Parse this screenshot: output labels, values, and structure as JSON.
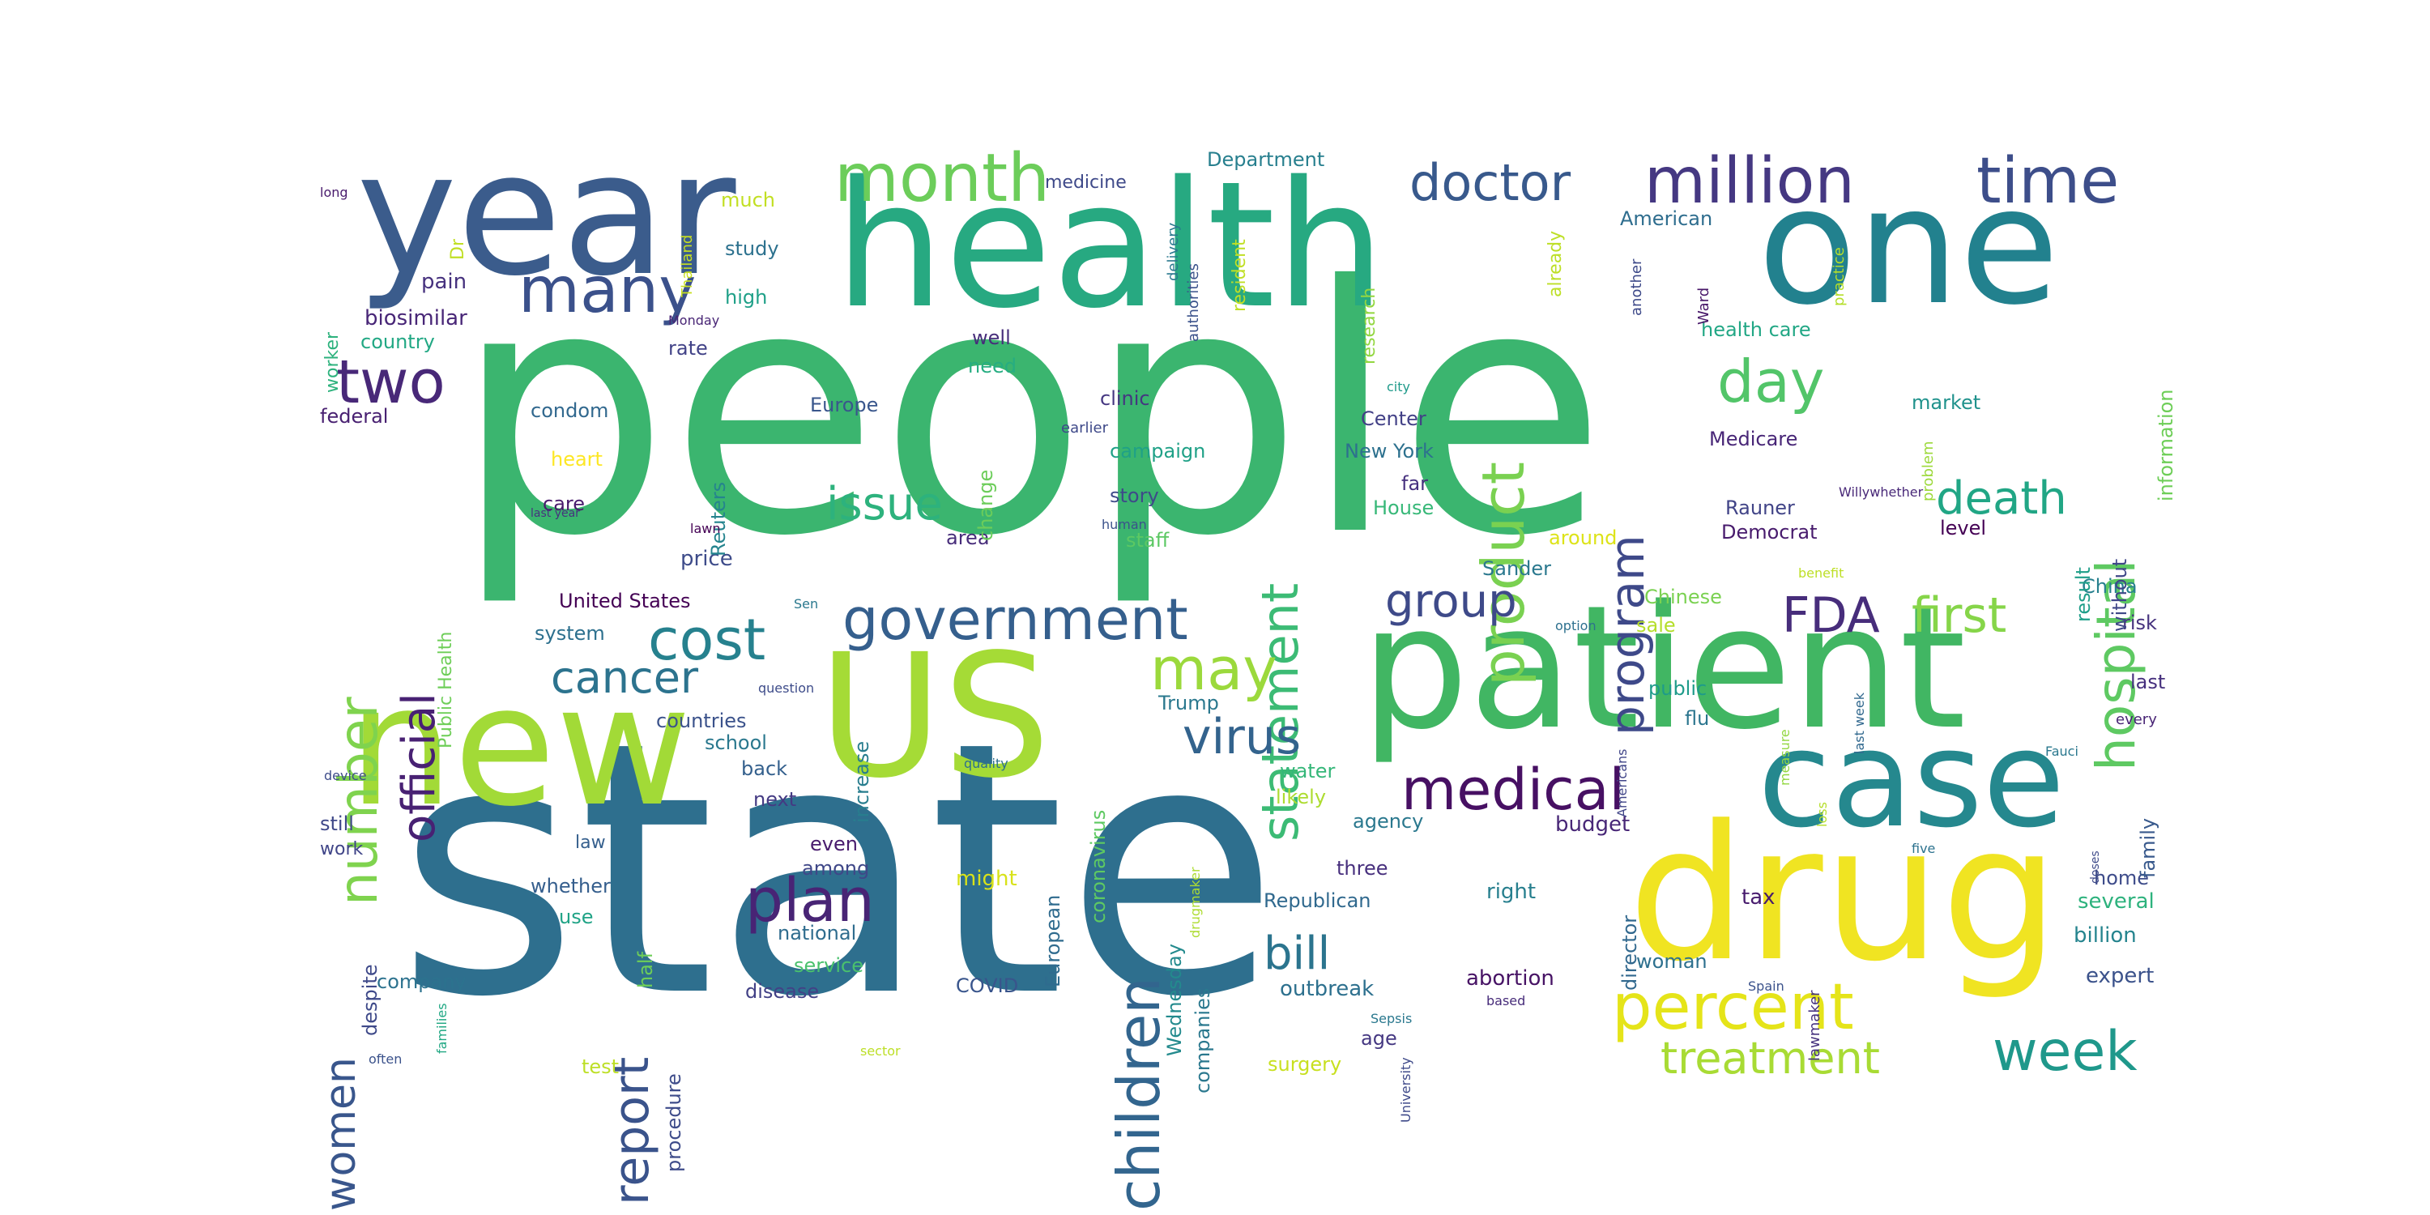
{
  "words": [
    {
      "text": "people",
      "color": "#3bb56f",
      "rot": 0
    },
    {
      "text": "state",
      "color": "#2e6f8e",
      "rot": 0
    },
    {
      "text": "patient",
      "color": "#41b663",
      "rot": 0
    },
    {
      "text": "health",
      "color": "#27a981",
      "rot": 0
    },
    {
      "text": "year",
      "color": "#3b5c8c",
      "rot": 0
    },
    {
      "text": "one",
      "color": "#22818e",
      "rot": 0
    },
    {
      "text": "new",
      "color": "#a2da37",
      "rot": 0
    },
    {
      "text": "US",
      "color": "#a5db36",
      "rot": 0
    },
    {
      "text": "case",
      "color": "#25888e",
      "rot": 0
    },
    {
      "text": "drug",
      "color": "#f0e422",
      "rot": 0
    },
    {
      "text": "month",
      "color": "#6ccd5a",
      "rot": 0
    },
    {
      "text": "million",
      "color": "#453882",
      "rot": 0
    },
    {
      "text": "time",
      "color": "#3d4e8a",
      "rot": 0
    },
    {
      "text": "many",
      "color": "#3b518b",
      "rot": 0
    },
    {
      "text": "doctor",
      "color": "#38598c",
      "rot": 0
    },
    {
      "text": "two",
      "color": "#482878",
      "rot": 0
    },
    {
      "text": "day",
      "color": "#52c569",
      "rot": 0
    },
    {
      "text": "statement",
      "color": "#3cbb75",
      "rot": 270
    },
    {
      "text": "product",
      "color": "#7ad151",
      "rot": 270
    },
    {
      "text": "program",
      "color": "#3e4989",
      "rot": 270
    },
    {
      "text": "hospital",
      "color": "#5ec962",
      "rot": 270
    },
    {
      "text": "number",
      "color": "#7fd34e",
      "rot": 270
    },
    {
      "text": "official",
      "color": "#482173",
      "rot": 270
    },
    {
      "text": "issue",
      "color": "#2db27d",
      "rot": 0
    },
    {
      "text": "death",
      "color": "#21a685",
      "rot": 0
    },
    {
      "text": "cost",
      "color": "#26818e",
      "rot": 0
    },
    {
      "text": "government",
      "color": "#355f8d",
      "rot": 0
    },
    {
      "text": "group",
      "color": "#3e4a89",
      "rot": 0
    },
    {
      "text": "FDA",
      "color": "#472d7b",
      "rot": 0
    },
    {
      "text": "first",
      "color": "#86d549",
      "rot": 0
    },
    {
      "text": "cancer",
      "color": "#2c738e",
      "rot": 0
    },
    {
      "text": "may",
      "color": "#9bd93c",
      "rot": 0
    },
    {
      "text": "virus",
      "color": "#33638d",
      "rot": 0
    },
    {
      "text": "children",
      "color": "#32658e",
      "rot": 270
    },
    {
      "text": "medical",
      "color": "#471063",
      "rot": 0
    },
    {
      "text": "plan",
      "color": "#482475",
      "rot": 0
    },
    {
      "text": "report",
      "color": "#3a538b",
      "rot": 270
    },
    {
      "text": "women",
      "color": "#39568c",
      "rot": 270
    },
    {
      "text": "bill",
      "color": "#2b748e",
      "rot": 0
    },
    {
      "text": "percent",
      "color": "#e5e419",
      "rot": 0
    },
    {
      "text": "week",
      "color": "#1f988b",
      "rot": 0
    },
    {
      "text": "treatment",
      "color": "#a8db34",
      "rot": 0
    },
    {
      "text": "pain",
      "color": "#46317e",
      "rot": 0
    },
    {
      "text": "biosimilar",
      "color": "#482677",
      "rot": 0
    },
    {
      "text": "country",
      "color": "#22a884",
      "rot": 0
    },
    {
      "text": "federal",
      "color": "#482071",
      "rot": 0
    },
    {
      "text": "condom",
      "color": "#31688e",
      "rot": 0
    },
    {
      "text": "heart",
      "color": "#fde725",
      "rot": 0
    },
    {
      "text": "care",
      "color": "#481a6c",
      "rot": 0
    },
    {
      "text": "price",
      "color": "#3e4c8a",
      "rot": 0
    },
    {
      "text": "United States",
      "color": "#440154",
      "rot": 0
    },
    {
      "text": "system",
      "color": "#2d708e",
      "rot": 0
    },
    {
      "text": "countries",
      "color": "#3b528b",
      "rot": 0
    },
    {
      "text": "school",
      "color": "#2a788e",
      "rot": 0
    },
    {
      "text": "back",
      "color": "#34608d",
      "rot": 0
    },
    {
      "text": "next",
      "color": "#443a83",
      "rot": 0
    },
    {
      "text": "even",
      "color": "#481b6d",
      "rot": 0
    },
    {
      "text": "among",
      "color": "#3f4788",
      "rot": 0
    },
    {
      "text": "whether",
      "color": "#355e8d",
      "rot": 0
    },
    {
      "text": "use",
      "color": "#20a386",
      "rot": 0
    },
    {
      "text": "national",
      "color": "#2f6c8e",
      "rot": 0
    },
    {
      "text": "service",
      "color": "#4ac16d",
      "rot": 0
    },
    {
      "text": "disease",
      "color": "#424186",
      "rot": 0
    },
    {
      "text": "COVID",
      "color": "#39558c",
      "rot": 0
    },
    {
      "text": "company",
      "color": "#2c728e",
      "rot": 0
    },
    {
      "text": "still",
      "color": "#3f4889",
      "rot": 0
    },
    {
      "text": "work",
      "color": "#404588",
      "rot": 0
    },
    {
      "text": "law",
      "color": "#355f8d",
      "rot": 0
    },
    {
      "text": "rate",
      "color": "#414287",
      "rot": 0
    },
    {
      "text": "high",
      "color": "#1fa088",
      "rot": 0
    },
    {
      "text": "study",
      "color": "#2c718e",
      "rot": 0
    },
    {
      "text": "much",
      "color": "#c2df23",
      "rot": 0
    },
    {
      "text": "medicine",
      "color": "#3e4989",
      "rot": 0
    },
    {
      "text": "Department",
      "color": "#277f8e",
      "rot": 0
    },
    {
      "text": "American",
      "color": "#2e6d8e",
      "rot": 0
    },
    {
      "text": "health care",
      "color": "#22a785",
      "rot": 0
    },
    {
      "text": "Europe",
      "color": "#39568c",
      "rot": 0
    },
    {
      "text": "clinic",
      "color": "#453781",
      "rot": 0
    },
    {
      "text": "campaign",
      "color": "#1fa187",
      "rot": 0
    },
    {
      "text": "story",
      "color": "#3e4a89",
      "rot": 0
    },
    {
      "text": "staff",
      "color": "#5cc863",
      "rot": 0
    },
    {
      "text": "area",
      "color": "#472c7a",
      "rot": 0
    },
    {
      "text": "Center",
      "color": "#424086",
      "rot": 0
    },
    {
      "text": "New York",
      "color": "#2d718e",
      "rot": 0
    },
    {
      "text": "far",
      "color": "#46307e",
      "rot": 0
    },
    {
      "text": "House",
      "color": "#37b878",
      "rot": 0
    },
    {
      "text": "Medicare",
      "color": "#482677",
      "rot": 0
    },
    {
      "text": "market",
      "color": "#20928c",
      "rot": 0
    },
    {
      "text": "Rauner",
      "color": "#414487",
      "rot": 0
    },
    {
      "text": "Democrat",
      "color": "#481b6d",
      "rot": 0
    },
    {
      "text": "Sander",
      "color": "#2a788e",
      "rot": 0
    },
    {
      "text": "Chinese",
      "color": "#7ad151",
      "rot": 0
    },
    {
      "text": "sale",
      "color": "#b5de2b",
      "rot": 0
    },
    {
      "text": "public",
      "color": "#1e9b8a",
      "rot": 0
    },
    {
      "text": "flu",
      "color": "#2b758e",
      "rot": 0
    },
    {
      "text": "China",
      "color": "#27808e",
      "rot": 0
    },
    {
      "text": "risk",
      "color": "#46327e",
      "rot": 0
    },
    {
      "text": "last",
      "color": "#46307e",
      "rot": 0
    },
    {
      "text": "level",
      "color": "#440154",
      "rot": 0
    },
    {
      "text": "Trump",
      "color": "#2a788e",
      "rot": 0
    },
    {
      "text": "water",
      "color": "#35b779",
      "rot": 0
    },
    {
      "text": "likely",
      "color": "#addc30",
      "rot": 0
    },
    {
      "text": "agency",
      "color": "#2a788e",
      "rot": 0
    },
    {
      "text": "budget",
      "color": "#482777",
      "rot": 0
    },
    {
      "text": "three",
      "color": "#472f7d",
      "rot": 0
    },
    {
      "text": "Republican",
      "color": "#30698e",
      "rot": 0
    },
    {
      "text": "right",
      "color": "#277f8e",
      "rot": 0
    },
    {
      "text": "tax",
      "color": "#481c6e",
      "rot": 0
    },
    {
      "text": "woman",
      "color": "#2d708e",
      "rot": 0
    },
    {
      "text": "abortion",
      "color": "#471365",
      "rot": 0
    },
    {
      "text": "outbreak",
      "color": "#2d708e",
      "rot": 0
    },
    {
      "text": "age",
      "color": "#453882",
      "rot": 0
    },
    {
      "text": "surgery",
      "color": "#c8e020",
      "rot": 0
    },
    {
      "text": "might",
      "color": "#d8e219",
      "rot": 0
    },
    {
      "text": "test",
      "color": "#bddf26",
      "rot": 0
    },
    {
      "text": "home",
      "color": "#3e4c8a",
      "rot": 0
    },
    {
      "text": "several",
      "color": "#2db27d",
      "rot": 0
    },
    {
      "text": "billion",
      "color": "#25848e",
      "rot": 0
    },
    {
      "text": "expert",
      "color": "#3b528b",
      "rot": 0
    },
    {
      "text": "family",
      "color": "#38598c",
      "rot": 270
    },
    {
      "text": "information",
      "color": "#6ece58",
      "rot": 270
    },
    {
      "text": "result",
      "color": "#1f9e89",
      "rot": 270
    },
    {
      "text": "without",
      "color": "#3f4788",
      "rot": 270
    },
    {
      "text": "already",
      "color": "#bddf26",
      "rot": 270
    },
    {
      "text": "research",
      "color": "#93d741",
      "rot": 270
    },
    {
      "text": "resident",
      "color": "#c0df25",
      "rot": 270
    },
    {
      "text": "around",
      "color": "#dde318",
      "rot": 0
    },
    {
      "text": "Reuters",
      "color": "#25848e",
      "rot": 270
    },
    {
      "text": "change",
      "color": "#6ccd5a",
      "rot": 270
    },
    {
      "text": "need",
      "color": "#26ad81",
      "rot": 0
    },
    {
      "text": "well",
      "color": "#472d7b",
      "rot": 0
    },
    {
      "text": "increase",
      "color": "#287d8e",
      "rot": 270
    },
    {
      "text": "coronavirus",
      "color": "#5ec962",
      "rot": 270
    },
    {
      "text": "European",
      "color": "#2f6b8e",
      "rot": 270
    },
    {
      "text": "companies",
      "color": "#2a788e",
      "rot": 270
    },
    {
      "text": "Wednesday",
      "color": "#238a8d",
      "rot": 270
    },
    {
      "text": "director",
      "color": "#31688e",
      "rot": 270
    },
    {
      "text": "despite",
      "color": "#3e4989",
      "rot": 270
    },
    {
      "text": "procedure",
      "color": "#3e4c8a",
      "rot": 270
    },
    {
      "text": "Public Health",
      "color": "#6ece58",
      "rot": 270
    },
    {
      "text": "half",
      "color": "#6ece58",
      "rot": 270
    },
    {
      "text": "worker",
      "color": "#2db27d",
      "rot": 270
    },
    {
      "text": "Dr",
      "color": "#c0df25",
      "rot": 270
    },
    {
      "text": "long",
      "color": "#481a6c",
      "rot": 0
    },
    {
      "text": "Thailand",
      "color": "#c8e020",
      "rot": 270
    },
    {
      "text": "Monday",
      "color": "#482575",
      "rot": 0
    },
    {
      "text": "delivery",
      "color": "#2a788e",
      "rot": 270
    },
    {
      "text": "authorities",
      "color": "#3b528b",
      "rot": 270
    },
    {
      "text": "another",
      "color": "#3e4a89",
      "rot": 270
    },
    {
      "text": "practice",
      "color": "#b5de2b",
      "rot": 270
    },
    {
      "text": "Ward",
      "color": "#481769",
      "rot": 270
    },
    {
      "text": "city",
      "color": "#1f9a8a",
      "rot": 0
    },
    {
      "text": "earlier",
      "color": "#3e4989",
      "rot": 0
    },
    {
      "text": "human",
      "color": "#3b528b",
      "rot": 0
    },
    {
      "text": "lawn",
      "color": "#440154",
      "rot": 0
    },
    {
      "text": "last year",
      "color": "#46327e",
      "rot": 0
    },
    {
      "text": "Sen",
      "color": "#2a788e",
      "rot": 0
    },
    {
      "text": "question",
      "color": "#3e4c8a",
      "rot": 0
    },
    {
      "text": "option",
      "color": "#2d708e",
      "rot": 0
    },
    {
      "text": "benefit",
      "color": "#bddf26",
      "rot": 0
    },
    {
      "text": "Willywhether",
      "color": "#482878",
      "rot": 0
    },
    {
      "text": "problem",
      "color": "#9dd93b",
      "rot": 270
    },
    {
      "text": "last week",
      "color": "#31688e",
      "rot": 270
    },
    {
      "text": "measure",
      "color": "#93d741",
      "rot": 270
    },
    {
      "text": "Americans",
      "color": "#404588",
      "rot": 270
    },
    {
      "text": "Fauci",
      "color": "#2a788e",
      "rot": 0
    },
    {
      "text": "every",
      "color": "#482475",
      "rot": 0
    },
    {
      "text": "doses",
      "color": "#3e4a89",
      "rot": 270
    },
    {
      "text": "five",
      "color": "#2c728e",
      "rot": 0
    },
    {
      "text": "loss",
      "color": "#b5de2b",
      "rot": 270
    },
    {
      "text": "lawmaker",
      "color": "#46327e",
      "rot": 270
    },
    {
      "text": "Spain",
      "color": "#3b528b",
      "rot": 0
    },
    {
      "text": "Sepsis",
      "color": "#2a788e",
      "rot": 0
    },
    {
      "text": "based",
      "color": "#472c7a",
      "rot": 0
    },
    {
      "text": "University",
      "color": "#3e4989",
      "rot": 270
    },
    {
      "text": "drugmaker",
      "color": "#addc30",
      "rot": 270
    },
    {
      "text": "device",
      "color": "#3e4c8a",
      "rot": 0
    },
    {
      "text": "quality",
      "color": "#2d708e",
      "rot": 0
    },
    {
      "text": "families",
      "color": "#22a884",
      "rot": 270
    },
    {
      "text": "often",
      "color": "#3b528b",
      "rot": 0
    },
    {
      "text": "sector",
      "color": "#bddf26",
      "rot": 0
    }
  ]
}
